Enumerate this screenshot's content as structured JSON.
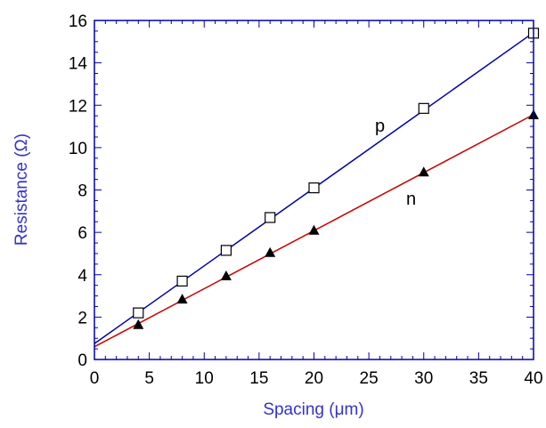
{
  "chart_data": {
    "type": "scatter",
    "title": "",
    "xlabel": "Spacing (μm)",
    "ylabel": "Resistance (Ω)",
    "xlim": [
      0,
      40
    ],
    "ylim": [
      0,
      16
    ],
    "xticks": [
      "0",
      "5",
      "10",
      "15",
      "20",
      "25",
      "30",
      "35",
      "40"
    ],
    "yticks": [
      "0",
      "2",
      "4",
      "6",
      "8",
      "10",
      "12",
      "14",
      "16"
    ],
    "grid": false,
    "axis_title_color": "#3333cc",
    "series": [
      {
        "name": "p",
        "marker": "open-square",
        "line_color": "#0000aa",
        "x": [
          4,
          8,
          12,
          16,
          20,
          30,
          40
        ],
        "y": [
          2.2,
          3.7,
          5.15,
          6.7,
          8.1,
          11.85,
          15.4
        ],
        "fit": {
          "intercept": 0.75,
          "slope": 0.367
        }
      },
      {
        "name": "n",
        "marker": "filled-triangle",
        "line_color": "#cc0000",
        "x": [
          4,
          8,
          12,
          16,
          20,
          30,
          40
        ],
        "y": [
          1.65,
          2.85,
          3.95,
          5.05,
          6.1,
          8.85,
          11.55
        ],
        "fit": {
          "intercept": 0.6,
          "slope": 0.274
        }
      }
    ]
  }
}
